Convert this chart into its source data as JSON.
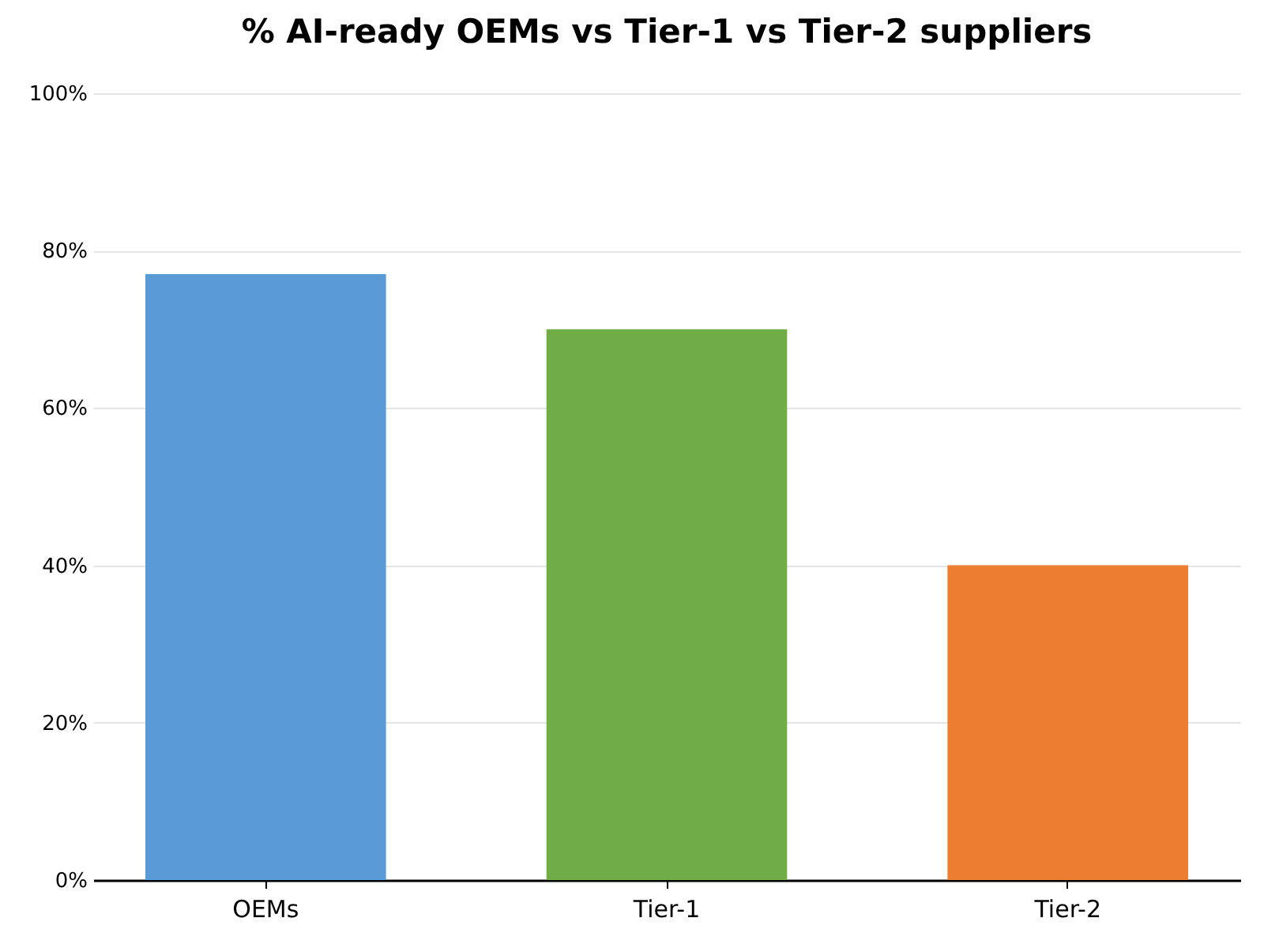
{
  "chart_data": {
    "type": "bar",
    "title": "% AI-ready OEMs vs Tier-1 vs Tier-2 suppliers",
    "categories": [
      "OEMs",
      "Tier-1",
      "Tier-2"
    ],
    "values": [
      77,
      70,
      40
    ],
    "colors": [
      "#5b9bd5",
      "#70ad47",
      "#ed7d31"
    ],
    "ylim": [
      0,
      100
    ],
    "yticks": [
      {
        "value": 0,
        "label": "0%"
      },
      {
        "value": 20,
        "label": "20%"
      },
      {
        "value": 40,
        "label": "40%"
      },
      {
        "value": 60,
        "label": "60%"
      },
      {
        "value": 80,
        "label": "80%"
      },
      {
        "value": 100,
        "label": "100%"
      }
    ],
    "grid": "y"
  }
}
